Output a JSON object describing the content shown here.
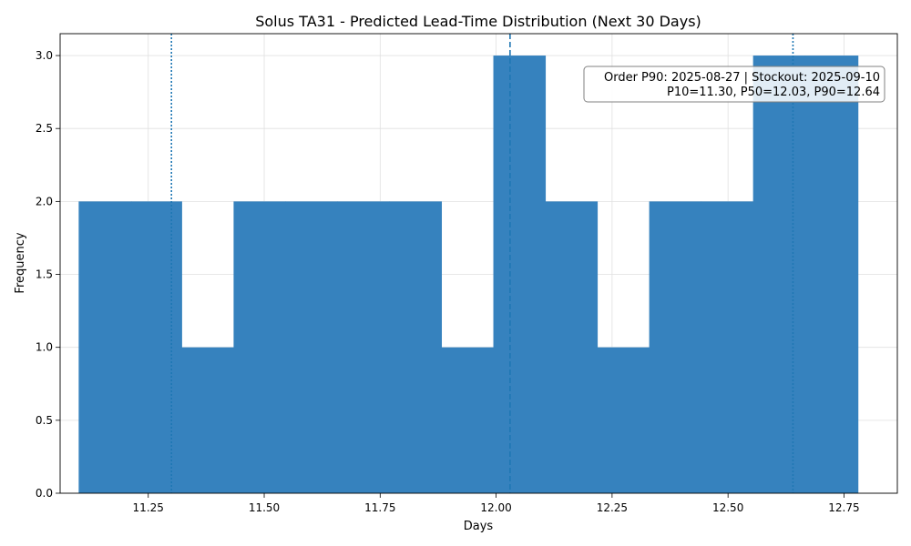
{
  "chart_data": {
    "type": "bar",
    "subtype": "histogram",
    "title": "Solus TA31 - Predicted Lead-Time Distribution (Next 30 Days)",
    "xlabel": "Days",
    "ylabel": "Frequency",
    "xlim": [
      11.06,
      12.865
    ],
    "ylim": [
      0,
      3.15
    ],
    "xticks": [
      "11.25",
      "11.50",
      "11.75",
      "12.00",
      "12.25",
      "12.50",
      "12.75"
    ],
    "yticks": [
      "0.0",
      "0.5",
      "1.0",
      "1.5",
      "2.0",
      "2.5",
      "3.0"
    ],
    "grid": true,
    "bar_color": "#3682be",
    "bins": [
      {
        "x0": 11.1,
        "x1": 11.214,
        "count": 2
      },
      {
        "x0": 11.214,
        "x1": 11.322,
        "count": 2
      },
      {
        "x0": 11.322,
        "x1": 11.434,
        "count": 1
      },
      {
        "x0": 11.434,
        "x1": 11.546,
        "count": 2
      },
      {
        "x0": 11.546,
        "x1": 11.658,
        "count": 2
      },
      {
        "x0": 11.658,
        "x1": 11.77,
        "count": 2
      },
      {
        "x0": 11.77,
        "x1": 11.882,
        "count": 2
      },
      {
        "x0": 11.882,
        "x1": 11.994,
        "count": 1
      },
      {
        "x0": 11.994,
        "x1": 12.106,
        "count": 3
      },
      {
        "x0": 12.106,
        "x1": 12.218,
        "count": 2
      },
      {
        "x0": 12.218,
        "x1": 12.33,
        "count": 1
      },
      {
        "x0": 12.33,
        "x1": 12.442,
        "count": 2
      },
      {
        "x0": 12.442,
        "x1": 12.554,
        "count": 2
      },
      {
        "x0": 12.554,
        "x1": 12.666,
        "count": 3
      },
      {
        "x0": 12.666,
        "x1": 12.78,
        "count": 3
      }
    ],
    "reference_lines": [
      {
        "name": "P10",
        "x": 11.3,
        "style": "dotted",
        "color": "#1f77b4"
      },
      {
        "name": "P50",
        "x": 12.03,
        "style": "dashed",
        "color": "#1f77b4"
      },
      {
        "name": "P90",
        "x": 12.64,
        "style": "dotted",
        "color": "#1f77b4"
      }
    ],
    "annotation": {
      "line1": "Order P90: 2025-08-27 | Stockout: 2025-09-10",
      "line2": "P10=11.30, P50=12.03, P90=12.64",
      "placement": "top-right"
    }
  }
}
